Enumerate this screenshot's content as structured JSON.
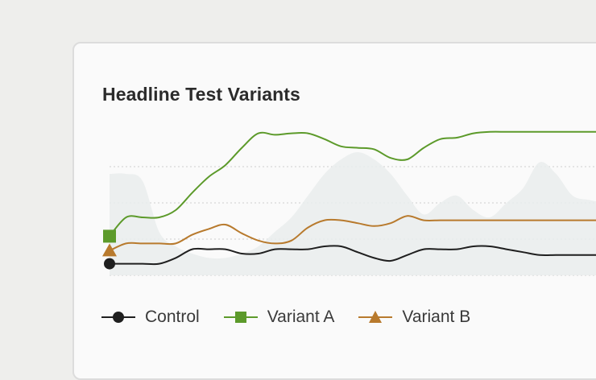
{
  "chart_data": {
    "type": "line",
    "title": "Headline Test Variants",
    "xlabel": "",
    "ylabel": "",
    "grid": "horizontal-dotted",
    "legend_placement": "bottom-left",
    "x": [
      0,
      1,
      2,
      3,
      4,
      5,
      6,
      7,
      8,
      9,
      10,
      11,
      12,
      13,
      14,
      15,
      16,
      17,
      18,
      19,
      20,
      21,
      22,
      23,
      24,
      25,
      26,
      27,
      28,
      29,
      30
    ],
    "ylim": [
      0,
      100
    ],
    "background_area": [
      70,
      70,
      65,
      30,
      20,
      15,
      12,
      12,
      15,
      20,
      30,
      40,
      55,
      70,
      80,
      85,
      80,
      70,
      55,
      42,
      50,
      55,
      45,
      40,
      50,
      60,
      78,
      70,
      55,
      52,
      50
    ],
    "series": [
      {
        "name": "Control",
        "color": "#1f1f1f",
        "marker": "circle",
        "values": [
          8,
          8,
          8,
          8,
          12,
          18,
          18,
          18,
          15,
          15,
          18,
          18,
          18,
          20,
          20,
          16,
          12,
          10,
          14,
          18,
          18,
          18,
          20,
          20,
          18,
          16,
          14,
          14,
          14,
          14,
          14
        ]
      },
      {
        "name": "Variant A",
        "color": "#5c9a2a",
        "marker": "square",
        "values": [
          27,
          40,
          40,
          40,
          45,
          57,
          68,
          76,
          88,
          98,
          97,
          98,
          98,
          94,
          89,
          88,
          87,
          81,
          80,
          88,
          94,
          95,
          98,
          99,
          99,
          99,
          99,
          99,
          99,
          99,
          99
        ]
      },
      {
        "name": "Variant B",
        "color": "#b87a2d",
        "marker": "triangle",
        "values": [
          17,
          22,
          22,
          22,
          22,
          28,
          32,
          35,
          29,
          24,
          22,
          24,
          33,
          38,
          38,
          36,
          34,
          36,
          41,
          38,
          38,
          38,
          38,
          38,
          38,
          38,
          38,
          38,
          38,
          38,
          38
        ]
      }
    ]
  }
}
